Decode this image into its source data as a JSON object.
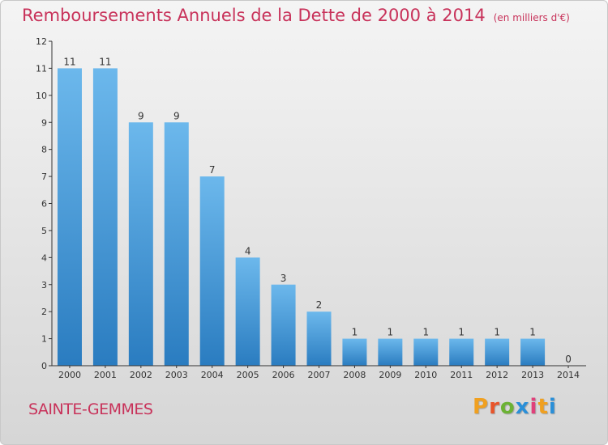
{
  "header": {
    "title": "Remboursements Annuels de la Dette de 2000 à 2014",
    "unit": "(en milliers d'€)"
  },
  "footer": {
    "commune": "SAINTE-GEMMES",
    "logo_text": "Proxiti",
    "logo_colors": [
      "#f0a020",
      "#e8542a",
      "#6cb234",
      "#2a8fd8",
      "#e0407a",
      "#f0a020",
      "#2a8fd8"
    ]
  },
  "colors": {
    "bar_light": "#6cb8ec",
    "bar_dark": "#2a7cc0",
    "axis": "#333333",
    "text": "#333333"
  },
  "chart_data": {
    "type": "bar",
    "categories": [
      "2000",
      "2001",
      "2002",
      "2003",
      "2004",
      "2005",
      "2006",
      "2007",
      "2008",
      "2009",
      "2010",
      "2011",
      "2012",
      "2013",
      "2014"
    ],
    "values": [
      11,
      11,
      9,
      9,
      7,
      4,
      3,
      2,
      1,
      1,
      1,
      1,
      1,
      1,
      0
    ],
    "data_labels": [
      "11",
      "11",
      "9",
      "9",
      "7",
      "4",
      "3",
      "2",
      "1",
      "1",
      "1",
      "1",
      "1",
      "1",
      "0"
    ],
    "yticks": [
      0,
      1,
      2,
      3,
      4,
      5,
      6,
      7,
      8,
      9,
      10,
      11,
      12
    ],
    "ylim": [
      0,
      12
    ],
    "grid": false,
    "legend": "none"
  }
}
